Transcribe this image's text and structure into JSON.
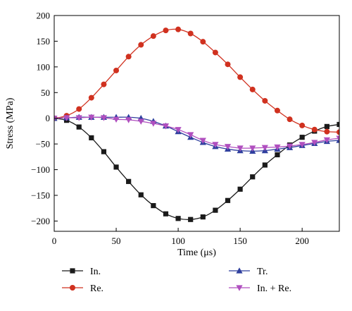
{
  "chart_data": {
    "type": "line",
    "xlabel": "Time (μs)",
    "ylabel": "Stress (MPa)",
    "xlim": [
      0,
      230
    ],
    "ylim": [
      -220,
      200
    ],
    "xticks": [
      0,
      50,
      100,
      150,
      200
    ],
    "yticks": [
      200,
      150,
      100,
      50,
      0,
      -50,
      -100,
      -150,
      -200
    ],
    "xtick_labels": [
      "0",
      "50",
      "100",
      "150",
      "200"
    ],
    "ytick_labels": [
      "200",
      "150",
      "100",
      "50",
      "0",
      "−50",
      "−100",
      "−150",
      "−200"
    ],
    "grid": false,
    "legend_position": "bottom",
    "series": [
      {
        "name": "In.",
        "color": "#1a1a1a",
        "marker": "square",
        "x": [
          0,
          10,
          20,
          30,
          40,
          50,
          60,
          70,
          80,
          90,
          100,
          110,
          120,
          130,
          140,
          150,
          160,
          170,
          180,
          190,
          200,
          210,
          220,
          230
        ],
        "y": [
          0,
          -4,
          -17,
          -38,
          -65,
          -95,
          -123,
          -149,
          -170,
          -186,
          -195,
          -197,
          -192,
          -179,
          -160,
          -138,
          -114,
          -91,
          -71,
          -52,
          -37,
          -25,
          -16,
          -12
        ]
      },
      {
        "name": "Re.",
        "color": "#d0311f",
        "marker": "circle",
        "x": [
          0,
          10,
          20,
          30,
          40,
          50,
          60,
          70,
          80,
          90,
          100,
          110,
          120,
          130,
          140,
          150,
          160,
          170,
          180,
          190,
          200,
          210,
          220,
          230
        ],
        "y": [
          0,
          5,
          18,
          40,
          66,
          93,
          120,
          143,
          160,
          171,
          173,
          165,
          149,
          128,
          105,
          80,
          56,
          34,
          15,
          -2,
          -14,
          -22,
          -26,
          -27
        ]
      },
      {
        "name": "Tr.",
        "color": "#2f3f9e",
        "marker": "triangle-up",
        "x": [
          0,
          10,
          20,
          30,
          40,
          50,
          60,
          70,
          80,
          90,
          100,
          110,
          120,
          130,
          140,
          150,
          160,
          170,
          180,
          190,
          200,
          210,
          220,
          230
        ],
        "y": [
          0,
          1,
          2,
          2,
          2,
          2,
          2,
          0,
          -6,
          -15,
          -26,
          -37,
          -47,
          -55,
          -60,
          -63,
          -64,
          -63,
          -60,
          -57,
          -53,
          -49,
          -45,
          -43
        ]
      },
      {
        "name": "In. + Re.",
        "color": "#b04fbf",
        "marker": "triangle-down",
        "x": [
          0,
          10,
          20,
          30,
          40,
          50,
          60,
          70,
          80,
          90,
          100,
          110,
          120,
          130,
          140,
          150,
          160,
          170,
          180,
          190,
          200,
          210,
          220,
          230
        ],
        "y": [
          0,
          1,
          1,
          2,
          1,
          -2,
          -3,
          -6,
          -10,
          -15,
          -22,
          -32,
          -43,
          -51,
          -55,
          -58,
          -58,
          -57,
          -56,
          -54,
          -51,
          -47,
          -42,
          -39
        ]
      }
    ]
  }
}
